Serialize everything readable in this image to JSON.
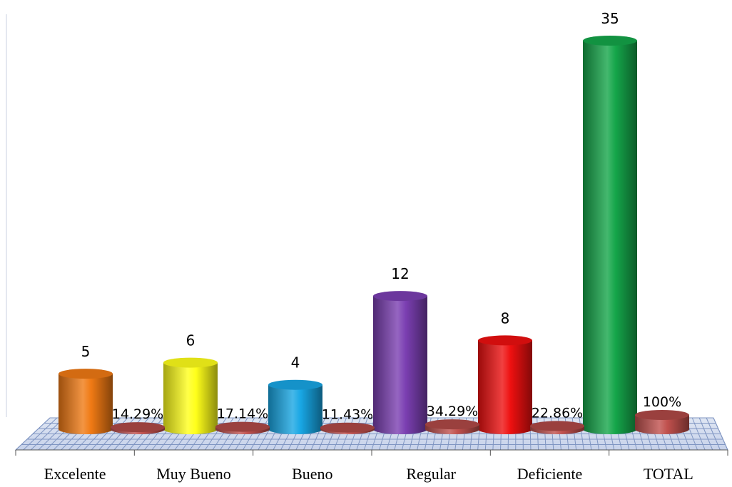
{
  "chart_data": {
    "type": "bar",
    "categories": [
      "Excelente",
      "Muy Bueno",
      "Bueno",
      "Regular",
      "Deficiente",
      "TOTAL"
    ],
    "series": [
      {
        "values": [
          5,
          6,
          4,
          12,
          8,
          35
        ],
        "colors": [
          "#f07a14",
          "#ffff1a",
          "#18a6e4",
          "#7b3fb2",
          "#ee1010",
          "#15a64a"
        ]
      },
      {
        "values": [
          14.29,
          17.14,
          11.43,
          34.29,
          22.86,
          100
        ],
        "value_labels": [
          "14.29%",
          "17.14%",
          "11.43%",
          "34.29%",
          "22.86%",
          "100%"
        ],
        "colors": [
          "#c0504d",
          "#c0504d",
          "#c0504d",
          "#c0504d",
          "#c0504d",
          "#c0504d"
        ]
      }
    ],
    "value_labels": [
      "5",
      "6",
      "4",
      "12",
      "8",
      "35"
    ],
    "style": "3d-cylinder",
    "floor": "blue-grid",
    "grid": true,
    "ylim": [
      0,
      35
    ]
  }
}
